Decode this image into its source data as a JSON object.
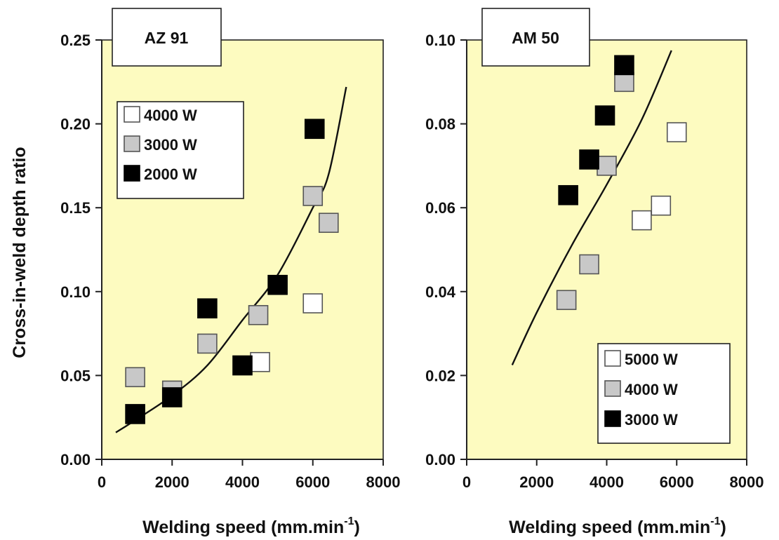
{
  "chart_data": [
    {
      "type": "scatter",
      "title": "AZ 91",
      "xlabel": "Welding speed (mm.min",
      "xlabel_sup": "-1",
      "xlabel_close": ")",
      "ylabel": "Cross-in-weld depth ratio",
      "xlim": [
        0,
        8000
      ],
      "ylim": [
        0,
        0.25
      ],
      "xticks": [
        "0",
        "2000",
        "4000",
        "6000",
        "8000"
      ],
      "yticks": [
        "0.00",
        "0.05",
        "0.10",
        "0.15",
        "0.20",
        "0.25"
      ],
      "legend_position": "upper-left",
      "series": [
        {
          "name": "4000 W",
          "color": "#ffffff",
          "points": [
            [
              4500,
              0.058
            ],
            [
              6000,
              0.093
            ]
          ]
        },
        {
          "name": "3000 W",
          "color": "#c8c8c8",
          "points": [
            [
              950,
              0.049
            ],
            [
              2000,
              0.041
            ],
            [
              3000,
              0.069
            ],
            [
              4450,
              0.086
            ],
            [
              6000,
              0.157
            ],
            [
              6450,
              0.141
            ]
          ]
        },
        {
          "name": "2000 W",
          "color": "#000000",
          "points": [
            [
              950,
              0.027
            ],
            [
              2000,
              0.037
            ],
            [
              3000,
              0.09
            ],
            [
              4000,
              0.056
            ],
            [
              5000,
              0.104
            ],
            [
              6050,
              0.197
            ]
          ]
        }
      ],
      "fit_curve": [
        [
          400,
          0.016
        ],
        [
          1000,
          0.024
        ],
        [
          2000,
          0.038
        ],
        [
          3000,
          0.056
        ],
        [
          4000,
          0.083
        ],
        [
          5000,
          0.11
        ],
        [
          6000,
          0.15
        ],
        [
          6450,
          0.17
        ],
        [
          6950,
          0.222
        ]
      ]
    },
    {
      "type": "scatter",
      "title": "AM 50",
      "xlabel": "Welding speed (mm.min",
      "xlabel_sup": "-1",
      "xlabel_close": ")",
      "ylabel": "",
      "xlim": [
        0,
        8000
      ],
      "ylim": [
        0,
        0.1
      ],
      "xticks": [
        "0",
        "2000",
        "4000",
        "6000",
        "8000"
      ],
      "yticks": [
        "0.00",
        "0.02",
        "0.04",
        "0.06",
        "0.08",
        "0.10"
      ],
      "legend_position": "lower-right",
      "series": [
        {
          "name": "5000 W",
          "color": "#ffffff",
          "points": [
            [
              5000,
              0.057
            ],
            [
              5550,
              0.0605
            ],
            [
              6000,
              0.078
            ]
          ]
        },
        {
          "name": "4000 W",
          "color": "#c8c8c8",
          "points": [
            [
              2850,
              0.038
            ],
            [
              3500,
              0.0465
            ],
            [
              4000,
              0.07
            ],
            [
              4500,
              0.09
            ]
          ]
        },
        {
          "name": "3000 W",
          "color": "#000000",
          "points": [
            [
              2900,
              0.063
            ],
            [
              3500,
              0.0715
            ],
            [
              3950,
              0.082
            ],
            [
              4500,
              0.094
            ]
          ]
        }
      ],
      "fit_curve": [
        [
          1300,
          0.0225
        ],
        [
          2000,
          0.035
        ],
        [
          3000,
          0.051
        ],
        [
          4000,
          0.0655
        ],
        [
          5000,
          0.081
        ],
        [
          5850,
          0.0975
        ]
      ]
    }
  ],
  "colors": {
    "plot_background": "#fdfbc0",
    "marker_stroke": "#555555",
    "curve": "#111111"
  }
}
